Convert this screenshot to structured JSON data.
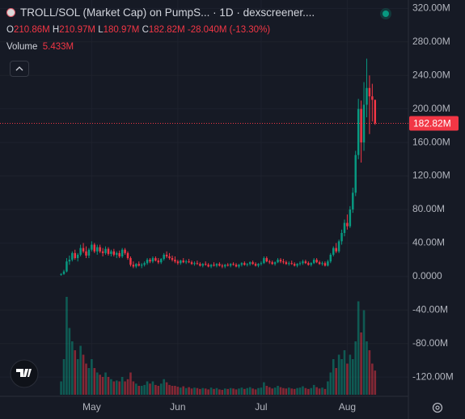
{
  "chart_data": {
    "type": "candlestick",
    "title": "TROLL/SOL (Market Cap) on PumpS... · 1D · dexscreener....",
    "ohlc_legend": [
      {
        "key": "O",
        "value": "210.86M"
      },
      {
        "key": "H",
        "value": "210.97M"
      },
      {
        "key": "L",
        "value": "180.97M"
      },
      {
        "key": "C",
        "value": "182.82M"
      }
    ],
    "change": "-28.040M (-13.30%)",
    "volume_label": "Volume",
    "volume_value": "5.433M",
    "up_color": "#089981",
    "down_color": "#f23645",
    "open": [
      2,
      3,
      6,
      18,
      20,
      28,
      22,
      26,
      34,
      30,
      25,
      32,
      38,
      30,
      35,
      30,
      28,
      33,
      27,
      30,
      26,
      28,
      24,
      32,
      28,
      22,
      14,
      12,
      15,
      13,
      14,
      16,
      20,
      18,
      22,
      19,
      17,
      21,
      26,
      24,
      22,
      20,
      18,
      16,
      19,
      17,
      18,
      17,
      15,
      16,
      15,
      13,
      15,
      14,
      12,
      14,
      13,
      15,
      13,
      12,
      14,
      13,
      15,
      14,
      12,
      14,
      16,
      14,
      15,
      17,
      15,
      13,
      15,
      16,
      22,
      18,
      17,
      15,
      17,
      20,
      18,
      17,
      15,
      16,
      15,
      13,
      15,
      16,
      18,
      16,
      14,
      16,
      20,
      17,
      15,
      16,
      13,
      18,
      26,
      34,
      30,
      42,
      52,
      64,
      60,
      80,
      100,
      145,
      200,
      160,
      205,
      225,
      215,
      210.86
    ],
    "high": [
      4,
      8,
      22,
      25,
      30,
      32,
      28,
      38,
      40,
      36,
      34,
      42,
      40,
      38,
      38,
      34,
      36,
      35,
      32,
      33,
      30,
      31,
      34,
      34,
      30,
      24,
      18,
      16,
      18,
      16,
      18,
      22,
      22,
      24,
      24,
      22,
      22,
      28,
      30,
      28,
      25,
      24,
      20,
      20,
      22,
      20,
      21,
      19,
      18,
      19,
      17,
      16,
      18,
      16,
      15,
      17,
      16,
      17,
      15,
      15,
      16,
      16,
      17,
      16,
      15,
      17,
      18,
      16,
      18,
      19,
      17,
      16,
      18,
      24,
      24,
      20,
      19,
      18,
      22,
      22,
      21,
      19,
      18,
      19,
      17,
      16,
      18,
      20,
      20,
      18,
      17,
      22,
      22,
      19,
      18,
      18,
      20,
      28,
      36,
      40,
      44,
      56,
      68,
      74,
      84,
      106,
      150,
      212,
      210,
      232,
      260,
      240,
      230,
      210.97
    ],
    "low": [
      1,
      2,
      5,
      14,
      18,
      20,
      18,
      24,
      28,
      22,
      22,
      30,
      28,
      26,
      28,
      24,
      26,
      25,
      24,
      24,
      22,
      22,
      22,
      26,
      20,
      12,
      10,
      10,
      12,
      10,
      12,
      14,
      16,
      16,
      18,
      15,
      15,
      19,
      22,
      20,
      18,
      16,
      14,
      14,
      16,
      15,
      16,
      14,
      13,
      14,
      12,
      11,
      13,
      11,
      10,
      12,
      11,
      12,
      10,
      10,
      12,
      11,
      13,
      11,
      10,
      12,
      13,
      12,
      13,
      14,
      12,
      11,
      13,
      15,
      17,
      15,
      14,
      13,
      16,
      16,
      15,
      14,
      13,
      14,
      12,
      11,
      13,
      14,
      15,
      13,
      12,
      15,
      16,
      14,
      13,
      12,
      12,
      16,
      24,
      28,
      28,
      38,
      48,
      56,
      58,
      76,
      96,
      140,
      136,
      150,
      190,
      170,
      185,
      180.97
    ],
    "close": [
      3,
      6,
      18,
      20,
      28,
      22,
      26,
      34,
      30,
      25,
      32,
      38,
      30,
      35,
      30,
      28,
      33,
      27,
      30,
      26,
      28,
      24,
      32,
      28,
      22,
      14,
      12,
      15,
      13,
      14,
      16,
      20,
      18,
      22,
      19,
      17,
      21,
      26,
      24,
      22,
      20,
      18,
      16,
      19,
      17,
      18,
      17,
      15,
      16,
      15,
      13,
      15,
      14,
      12,
      14,
      13,
      15,
      13,
      12,
      14,
      13,
      15,
      14,
      12,
      14,
      16,
      14,
      15,
      17,
      15,
      13,
      15,
      16,
      22,
      18,
      17,
      15,
      17,
      20,
      18,
      17,
      15,
      16,
      15,
      13,
      15,
      16,
      18,
      16,
      14,
      16,
      20,
      17,
      15,
      16,
      13,
      18,
      26,
      34,
      30,
      42,
      52,
      64,
      60,
      80,
      100,
      145,
      200,
      160,
      205,
      225,
      215,
      210.86,
      182.82
    ],
    "volume": [
      3,
      8,
      22,
      15,
      12,
      10,
      8,
      11,
      9,
      7,
      6,
      8,
      6,
      5,
      4.5,
      4,
      5,
      4,
      3.5,
      3,
      3.2,
      3,
      4,
      3,
      3.5,
      5,
      3,
      2.5,
      2,
      2,
      2.2,
      3,
      2.5,
      3,
      2.2,
      2,
      2.5,
      3.5,
      2.8,
      2.2,
      2,
      2,
      1.8,
      1.6,
      1.9,
      1.5,
      1.7,
      1.4,
      1.6,
      1.5,
      1.3,
      1.5,
      1.4,
      1.2,
      1.6,
      1.3,
      1.5,
      1.2,
      1.1,
      1.4,
      1.3,
      1.5,
      1.4,
      1.2,
      1.4,
      1.6,
      1.3,
      1.5,
      1.7,
      1.4,
      1.2,
      1.5,
      1.6,
      2.8,
      2,
      1.7,
      1.4,
      1.6,
      2,
      1.7,
      1.5,
      1.4,
      1.6,
      1.4,
      1.3,
      1.5,
      1.6,
      1.9,
      1.5,
      1.3,
      1.5,
      2.2,
      1.7,
      1.4,
      1.6,
      1.3,
      3,
      5,
      8,
      6,
      9,
      8,
      10,
      7,
      9,
      8,
      12,
      21,
      14,
      19,
      12,
      10,
      7,
      5.433
    ],
    "xlim": [
      -22,
      125
    ],
    "xticks": [
      {
        "value": 11,
        "label": "May"
      },
      {
        "value": 42,
        "label": "Jun"
      },
      {
        "value": 72,
        "label": "Jul"
      },
      {
        "value": 103,
        "label": "Aug"
      }
    ],
    "ylim": [
      -143,
      330
    ],
    "yticks": [
      {
        "value": 320,
        "label": "320.00M"
      },
      {
        "value": 280,
        "label": "280.00M"
      },
      {
        "value": 240,
        "label": "240.00M"
      },
      {
        "value": 200,
        "label": "200.00M"
      },
      {
        "value": 160,
        "label": "160.00M"
      },
      {
        "value": 120,
        "label": "120.00M"
      },
      {
        "value": 80,
        "label": "80.00M"
      },
      {
        "value": 40,
        "label": "40.00M"
      },
      {
        "value": 0,
        "label": "0.0000"
      },
      {
        "value": -40,
        "label": "-40.00M"
      },
      {
        "value": -80,
        "label": "-80.00M"
      },
      {
        "value": -120,
        "label": "-120.00M"
      }
    ],
    "grid": true,
    "price_line": {
      "value": 182.82,
      "label": "182.82M"
    }
  }
}
